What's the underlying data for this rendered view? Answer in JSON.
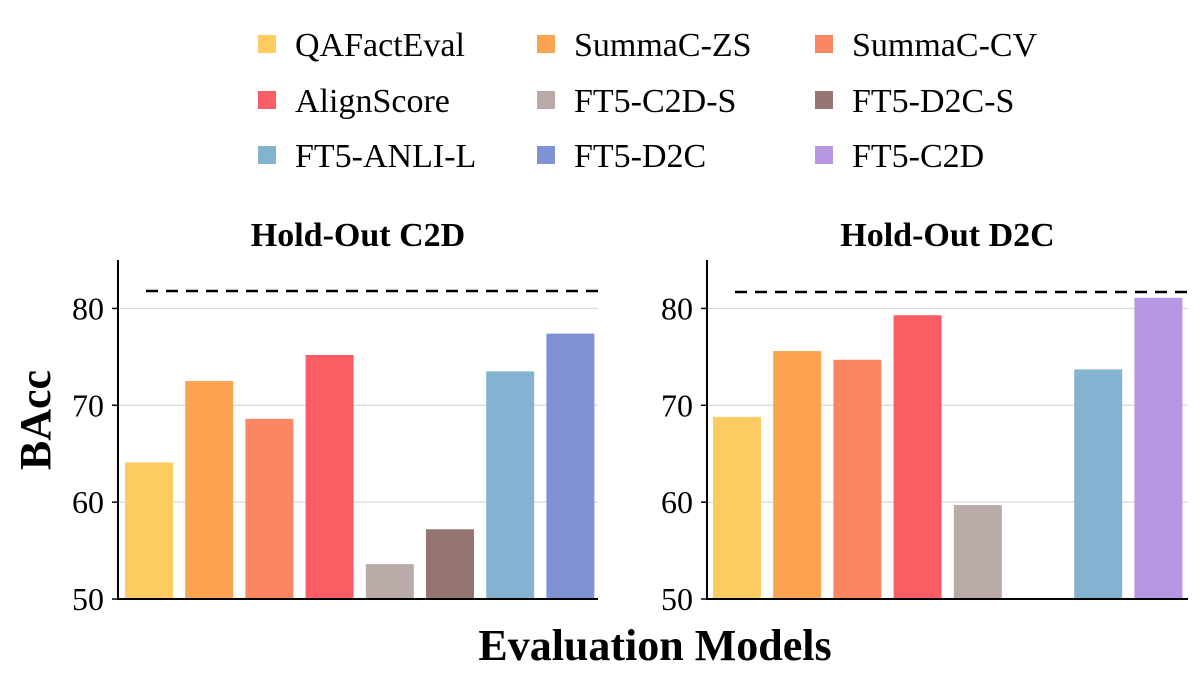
{
  "chart_data": {
    "type": "bar",
    "xlabel": "Evaluation Models",
    "ylabel": "BAcc",
    "ylim": [
      50,
      85
    ],
    "yticks": [
      50,
      60,
      70,
      80
    ],
    "reference_line": {
      "style": "dashed",
      "color": "#000000"
    },
    "legend": {
      "position": "top",
      "columns": 3,
      "entries": [
        {
          "name": "QAFactEval",
          "color": "#FCCB62"
        },
        {
          "name": "SummaC-ZS",
          "color": "#FCA352"
        },
        {
          "name": "SummaC-CV",
          "color": "#FC8562"
        },
        {
          "name": "AlignScore",
          "color": "#FA5E64"
        },
        {
          "name": "FT5-C2D-S",
          "color": "#BAAAA8"
        },
        {
          "name": "FT5-D2C-S",
          "color": "#967571"
        },
        {
          "name": "FT5-ANLI-L",
          "color": "#84B3D2"
        },
        {
          "name": "FT5-D2C",
          "color": "#7F93D4"
        },
        {
          "name": "FT5-C2D",
          "color": "#B797E3"
        }
      ]
    },
    "panels": [
      {
        "title": "Hold-Out C2D",
        "reference_value": 81.8,
        "bars": [
          {
            "model": "QAFactEval",
            "value": 64.1,
            "color": "#FCCB62"
          },
          {
            "model": "SummaC-ZS",
            "value": 72.5,
            "color": "#FCA352"
          },
          {
            "model": "SummaC-CV",
            "value": 68.6,
            "color": "#FC8562"
          },
          {
            "model": "AlignScore",
            "value": 75.2,
            "color": "#FA5E64"
          },
          {
            "model": "FT5-C2D-S",
            "value": 53.6,
            "color": "#BAAAA8"
          },
          {
            "model": "FT5-D2C-S",
            "value": 57.2,
            "color": "#967571"
          },
          {
            "model": "FT5-ANLI-L",
            "value": 73.5,
            "color": "#84B3D2"
          },
          {
            "model": "FT5-D2C",
            "value": 77.4,
            "color": "#7F93D4"
          }
        ]
      },
      {
        "title": "Hold-Out D2C",
        "reference_value": 81.7,
        "bars": [
          {
            "model": "QAFactEval",
            "value": 68.8,
            "color": "#FCCB62"
          },
          {
            "model": "SummaC-ZS",
            "value": 75.6,
            "color": "#FCA352"
          },
          {
            "model": "SummaC-CV",
            "value": 74.7,
            "color": "#FC8562"
          },
          {
            "model": "AlignScore",
            "value": 79.3,
            "color": "#FA5E64"
          },
          {
            "model": "FT5-C2D-S",
            "value": 59.7,
            "color": "#BAAAA8"
          },
          {
            "model": "FT5-D2C-S",
            "value": null,
            "color": "#967571"
          },
          {
            "model": "FT5-ANLI-L",
            "value": 73.7,
            "color": "#84B3D2"
          },
          {
            "model": "FT5-C2D",
            "value": 81.1,
            "color": "#B797E3"
          }
        ]
      }
    ]
  }
}
